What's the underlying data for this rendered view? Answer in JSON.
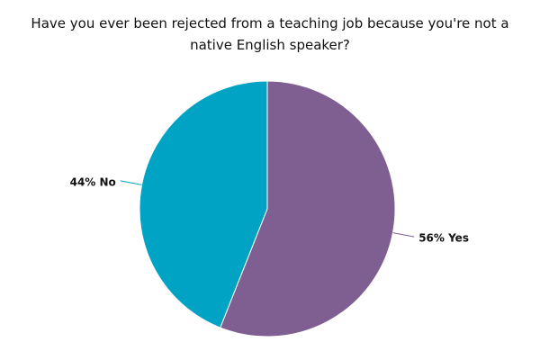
{
  "chart_data": {
    "type": "pie",
    "title": "Have you ever been rejected from a teaching job because you're not a native English speaker?",
    "values": [
      56,
      44
    ],
    "value_labels": [
      "56% Yes",
      "44% No"
    ],
    "colors": [
      "#7f5f92",
      "#00a3c4"
    ]
  }
}
